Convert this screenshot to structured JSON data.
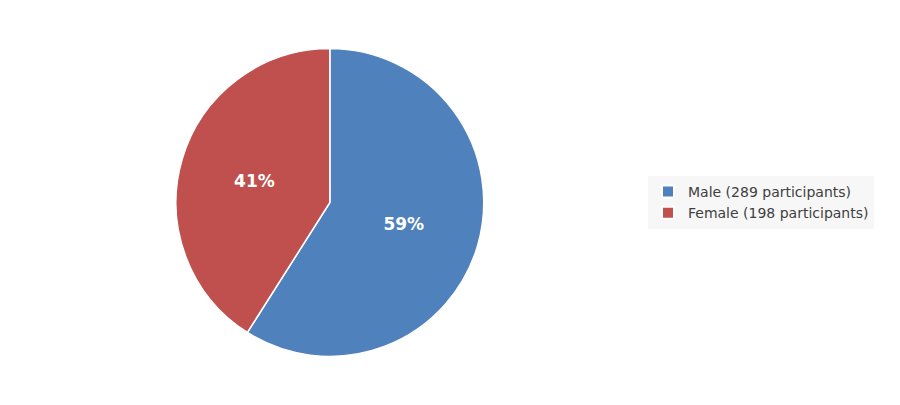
{
  "chart_data": {
    "type": "pie",
    "categories": [
      "Male (289 participants)",
      "Female (198 participants)"
    ],
    "values": [
      59,
      41
    ],
    "value_labels": [
      "59%",
      "41%"
    ],
    "colors": [
      "#4f81bd",
      "#c0504d"
    ],
    "data_labels": true,
    "legend": "right"
  }
}
